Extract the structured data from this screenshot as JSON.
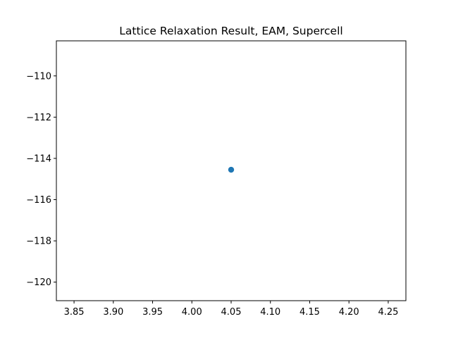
{
  "chart_data": {
    "type": "scatter",
    "title": "Lattice Relaxation Result, EAM, Supercell",
    "xlabel": "",
    "ylabel": "",
    "xlim": [
      3.8275,
      4.2725
    ],
    "ylim": [
      -120.9,
      -108.3
    ],
    "x_ticks": [
      3.85,
      3.9,
      3.95,
      4.0,
      4.05,
      4.1,
      4.15,
      4.2,
      4.25
    ],
    "x_tick_labels": [
      "3.85",
      "3.90",
      "3.95",
      "4.00",
      "4.05",
      "4.10",
      "4.15",
      "4.20",
      "4.25"
    ],
    "y_ticks": [
      -110,
      -112,
      -114,
      -116,
      -118,
      -120
    ],
    "y_tick_labels": [
      "−110",
      "−112",
      "−114",
      "−116",
      "−118",
      "−120"
    ],
    "series": [
      {
        "x": [
          4.05
        ],
        "y": [
          -114.55
        ],
        "color": "#1f77b4"
      }
    ],
    "grid": false,
    "legend": "none"
  }
}
